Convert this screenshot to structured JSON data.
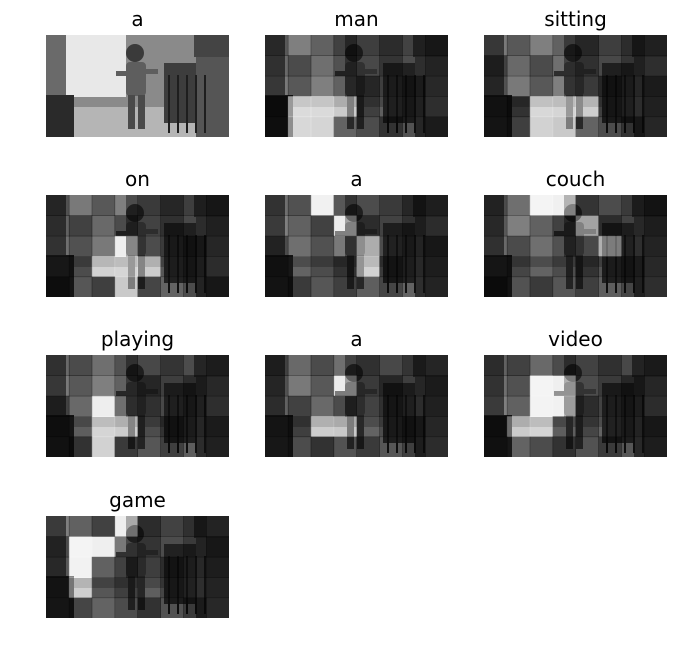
{
  "panels": [
    {
      "word": "a",
      "highlight": [],
      "base": "#6f6f6f"
    },
    {
      "word": "man",
      "highlight": [
        [
          3,
          1,
          0.95
        ],
        [
          4,
          1,
          0.85
        ],
        [
          3,
          2,
          0.9
        ],
        [
          4,
          2,
          0.8
        ],
        [
          3,
          3,
          0.55
        ]
      ],
      "base": "#333333"
    },
    {
      "word": "sitting",
      "highlight": [
        [
          3,
          2,
          0.85
        ],
        [
          4,
          2,
          0.7
        ],
        [
          3,
          3,
          0.8
        ],
        [
          3,
          4,
          0.65
        ],
        [
          4,
          3,
          0.5
        ]
      ],
      "base": "#383838"
    },
    {
      "word": "on",
      "highlight": [
        [
          3,
          2,
          0.7
        ],
        [
          3,
          3,
          0.8
        ],
        [
          3,
          4,
          0.6
        ],
        [
          2,
          3,
          0.45
        ],
        [
          4,
          3,
          0.5
        ]
      ],
      "base": "#444444"
    },
    {
      "word": "a",
      "highlight": [
        [
          0,
          2,
          0.7
        ],
        [
          3,
          4,
          0.75
        ],
        [
          2,
          4,
          0.55
        ],
        [
          1,
          3,
          0.4
        ]
      ],
      "base": "#454545"
    },
    {
      "word": "couch",
      "highlight": [
        [
          0,
          2,
          0.95
        ],
        [
          0,
          3,
          0.65
        ],
        [
          2,
          5,
          0.6
        ],
        [
          1,
          4,
          0.4
        ]
      ],
      "base": "#505050"
    },
    {
      "word": "playing",
      "highlight": [
        [
          3,
          2,
          0.8
        ],
        [
          4,
          2,
          0.7
        ],
        [
          3,
          3,
          0.6
        ],
        [
          2,
          2,
          0.45
        ]
      ],
      "base": "#3f3f3f"
    },
    {
      "word": "a",
      "highlight": [
        [
          3,
          2,
          0.6
        ],
        [
          3,
          3,
          0.5
        ],
        [
          1,
          3,
          0.35
        ]
      ],
      "base": "#3a3a3a"
    },
    {
      "word": "video",
      "highlight": [
        [
          1,
          2,
          0.95
        ],
        [
          2,
          2,
          0.85
        ],
        [
          3,
          2,
          0.8
        ],
        [
          2,
          3,
          0.7
        ],
        [
          1,
          3,
          0.6
        ],
        [
          3,
          1,
          0.55
        ]
      ],
      "base": "#666666"
    },
    {
      "word": "game",
      "highlight": [
        [
          1,
          1,
          0.9
        ],
        [
          2,
          1,
          0.8
        ],
        [
          3,
          1,
          0.65
        ],
        [
          1,
          2,
          0.6
        ],
        [
          0,
          3,
          0.5
        ]
      ],
      "base": "#555555"
    }
  ]
}
